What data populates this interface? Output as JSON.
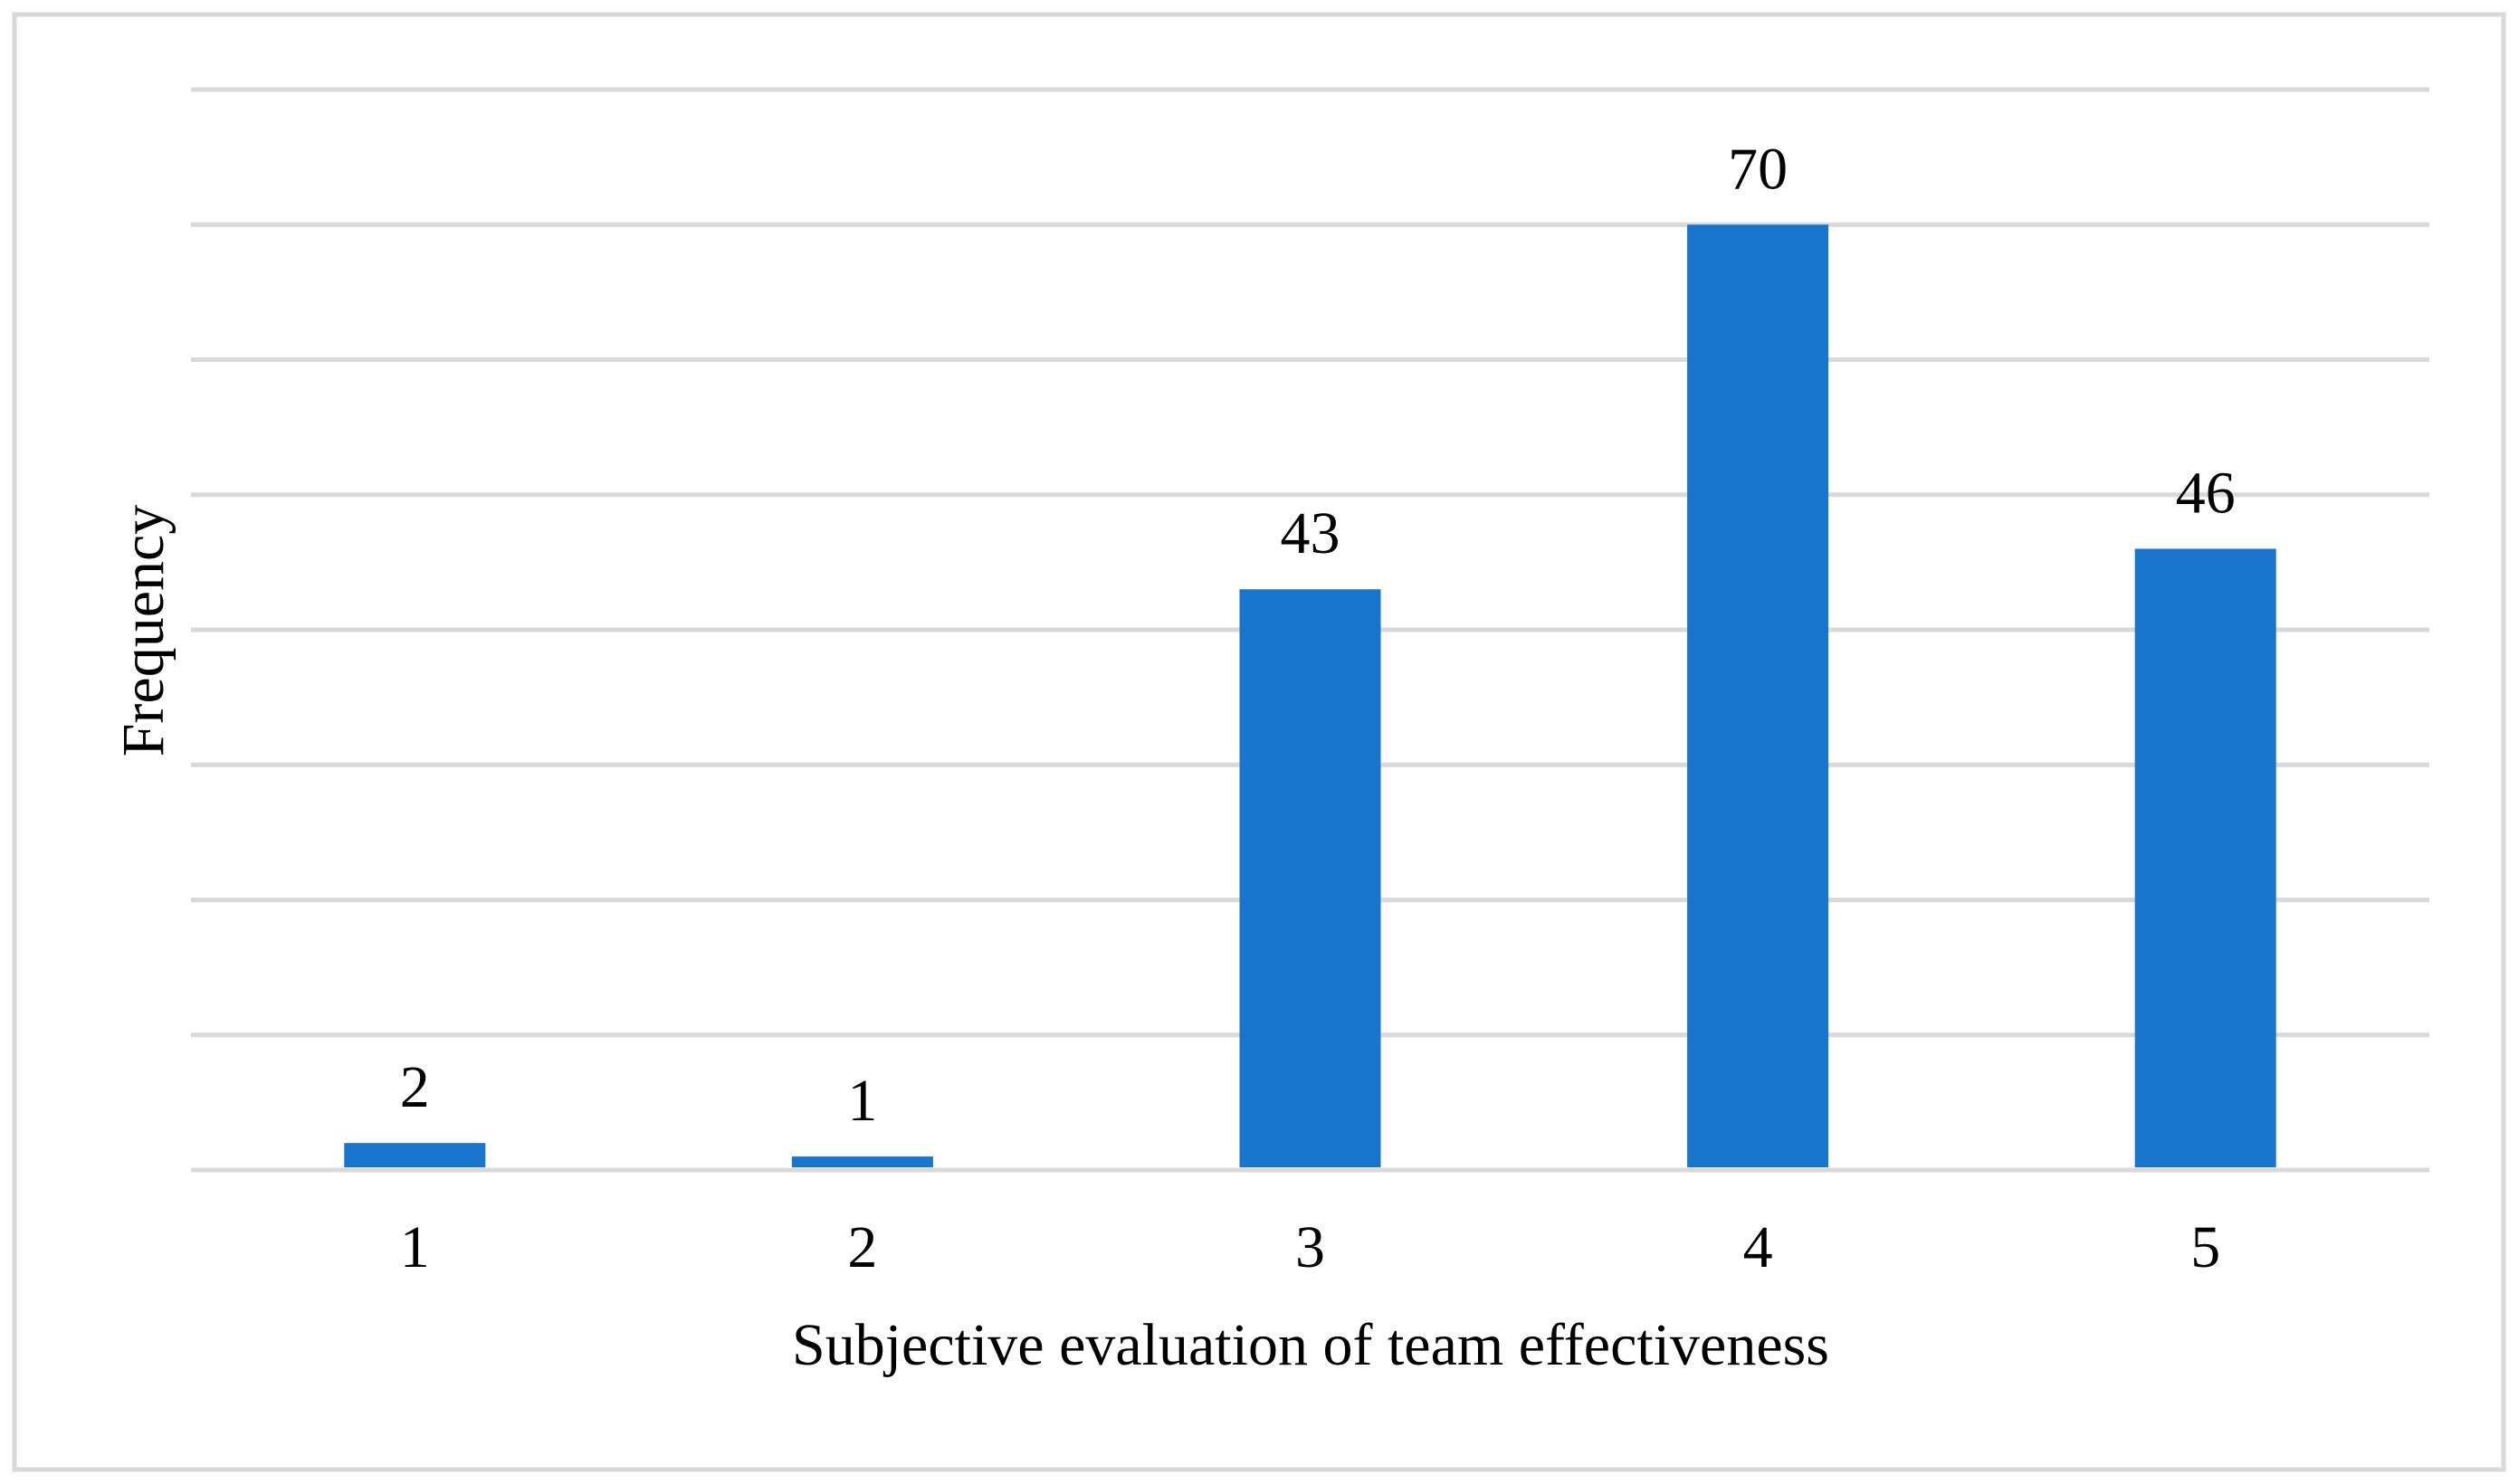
{
  "chart_data": {
    "type": "bar",
    "title": "",
    "xlabel": "Subjective evaluation of team effectiveness",
    "ylabel": "Frequency",
    "categories": [
      "1",
      "2",
      "3",
      "4",
      "5"
    ],
    "values": [
      2,
      1,
      43,
      70,
      46
    ],
    "data_labels": [
      "2",
      "1",
      "43",
      "70",
      "46"
    ],
    "ylim": [
      0,
      80
    ],
    "y_gridline_step": 10,
    "y_tick_labels_shown": false,
    "grid": true,
    "legend": "none",
    "colors": {
      "bar": "#1874CD",
      "grid": "#D9D9D9",
      "border": "#D9D9D9"
    }
  }
}
